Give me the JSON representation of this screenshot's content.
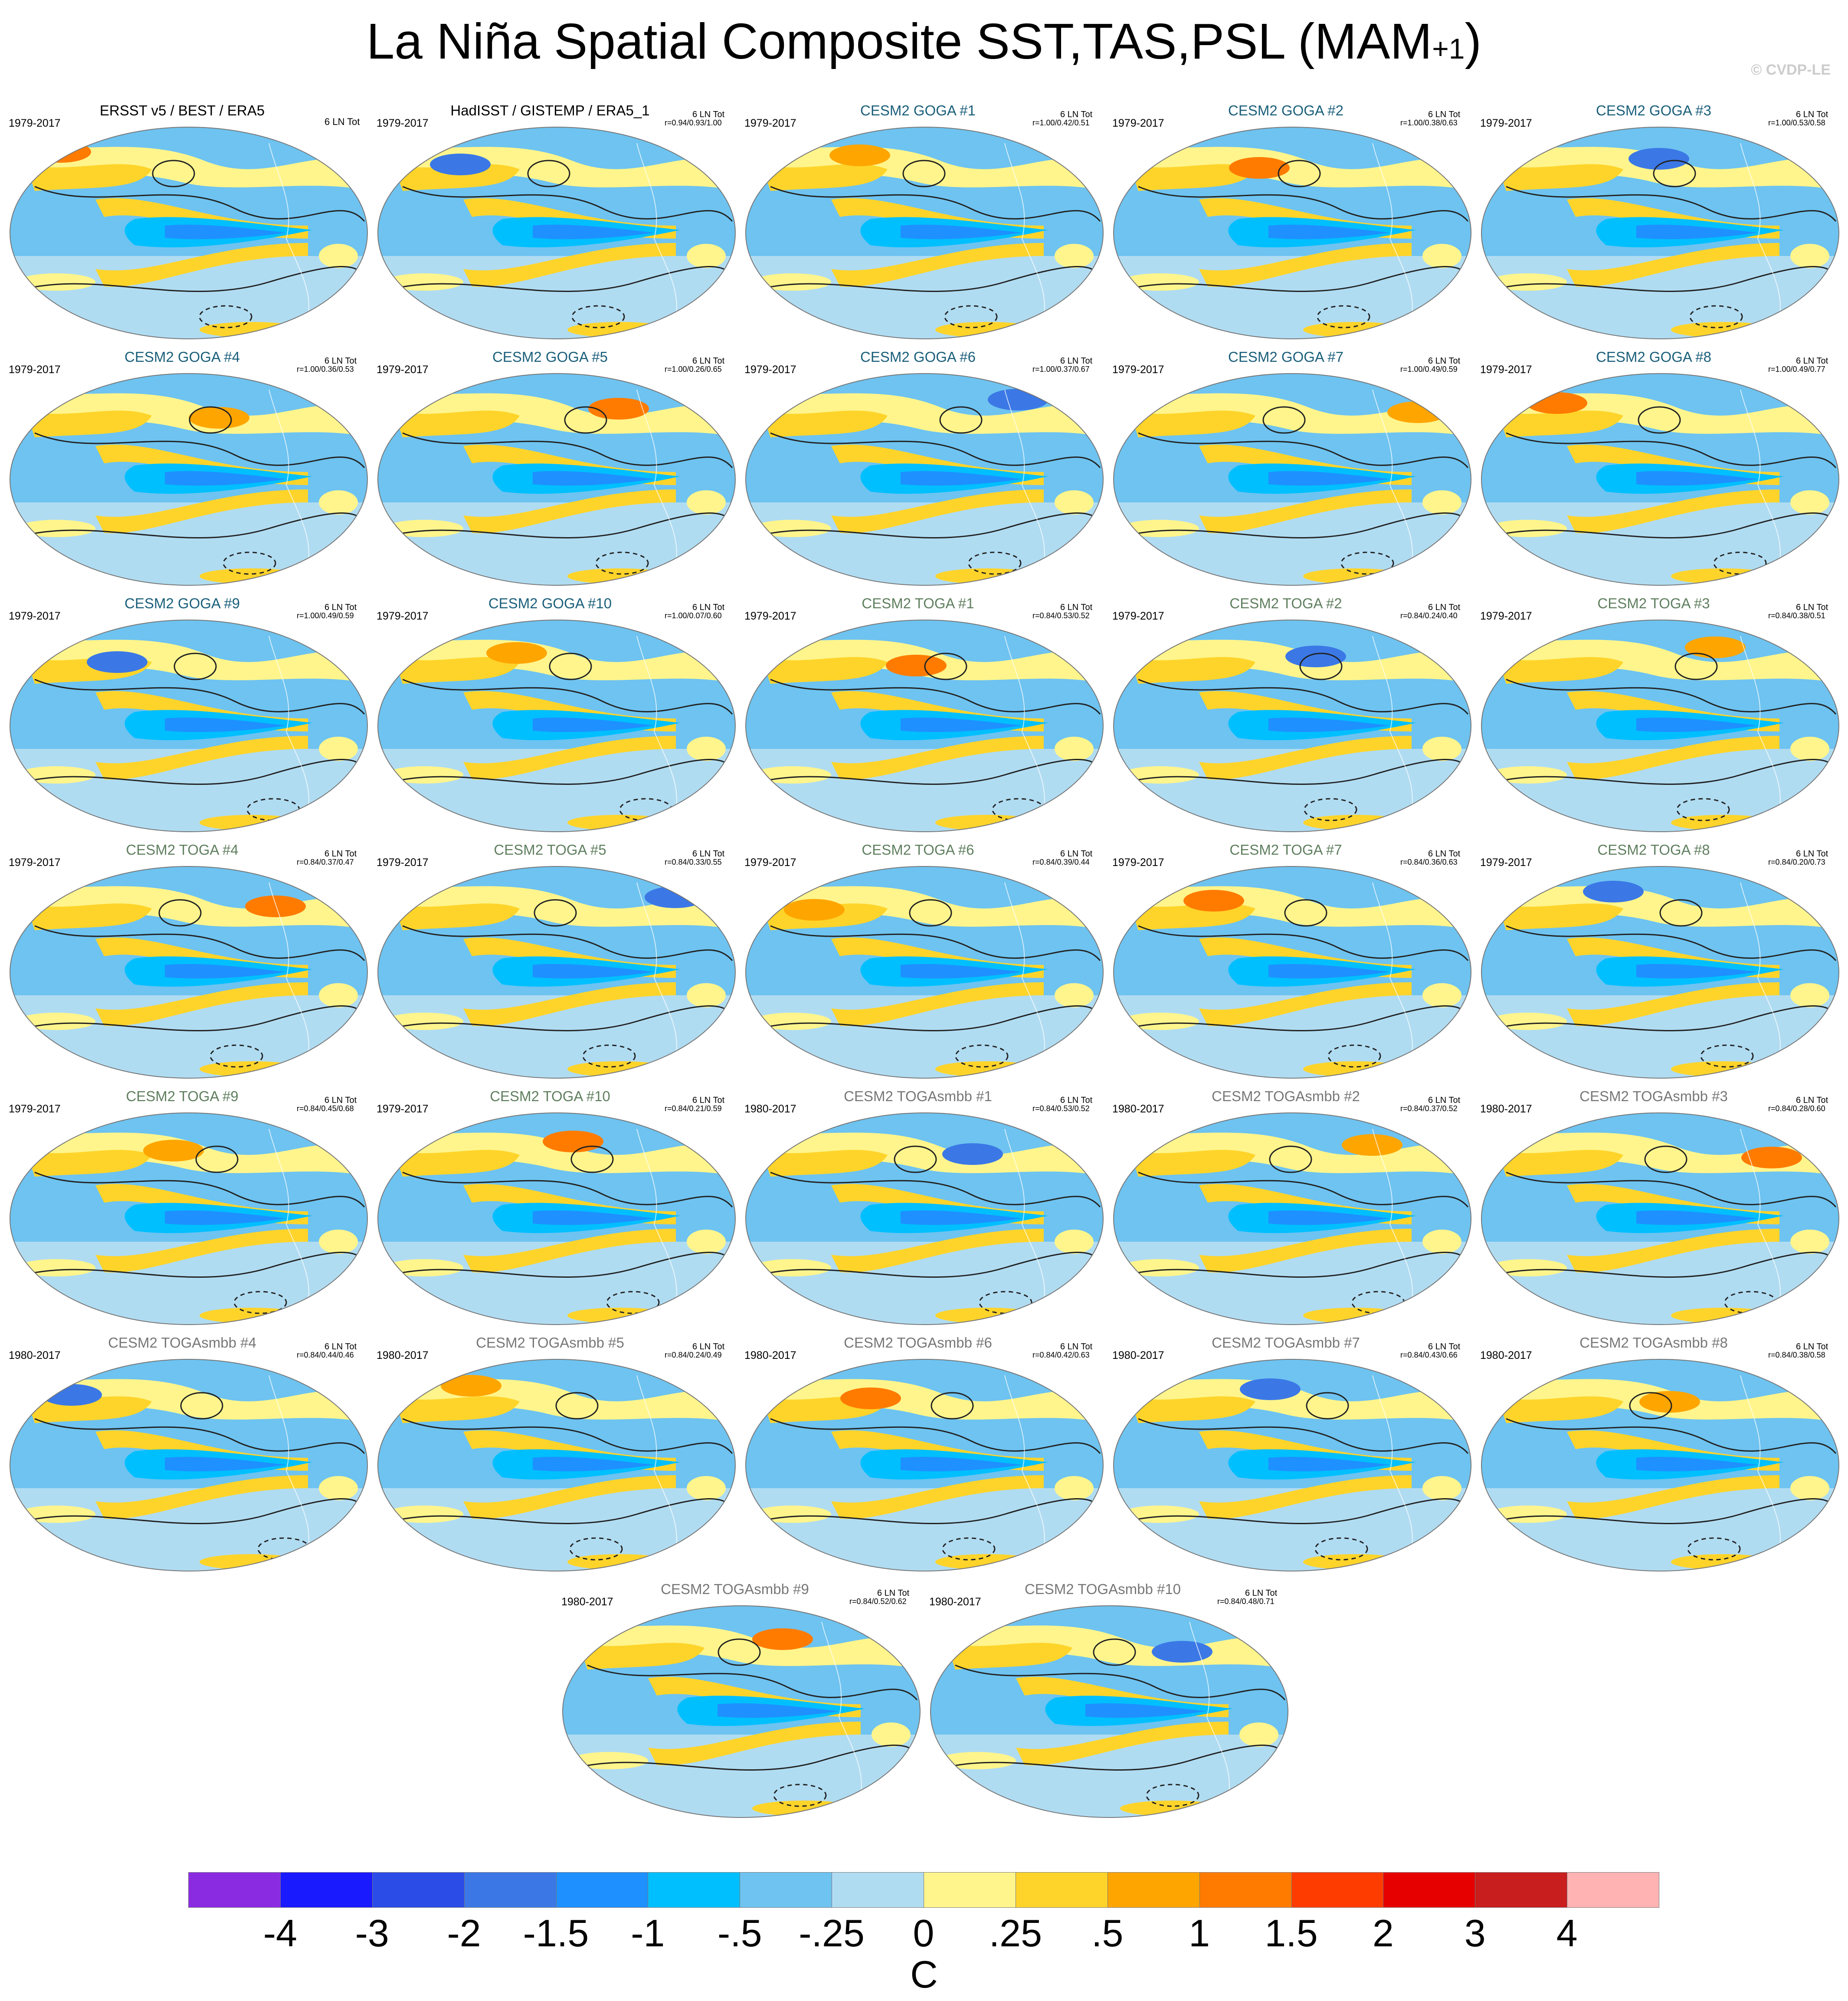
{
  "title": "La Niña Spatial Composite SST,TAS,PSL (MAM",
  "title_superscript": "+1",
  "title_close": ")",
  "watermark": "© CVDP-LE",
  "chart_data": {
    "type": "heatmap",
    "description_kind": "grid of global map panels (Robinson-style ellipse), filled SST/TAS composite anomaly with PSL contours",
    "panels": [
      {
        "title": "ERSST v5 / BEST / ERA5",
        "period": "1979-2017",
        "stat": "6 LN Tot",
        "r": "",
        "title_color": "#000000"
      },
      {
        "title": "HadISST / GISTEMP / ERA5_1",
        "period": "1979-2017",
        "stat": "6 LN Tot",
        "r": "r=0.94/0.93/1.00",
        "title_color": "#000000"
      },
      {
        "title": "CESM2 GOGA #1",
        "period": "1979-2017",
        "stat": "6 LN Tot",
        "r": "r=1.00/0.42/0.51",
        "title_color": "#1a5f7a"
      },
      {
        "title": "CESM2 GOGA #2",
        "period": "1979-2017",
        "stat": "6 LN Tot",
        "r": "r=1.00/0.38/0.63",
        "title_color": "#1a5f7a"
      },
      {
        "title": "CESM2 GOGA #3",
        "period": "1979-2017",
        "stat": "6 LN Tot",
        "r": "r=1.00/0.53/0.58",
        "title_color": "#1a5f7a"
      },
      {
        "title": "CESM2 GOGA #4",
        "period": "1979-2017",
        "stat": "6 LN Tot",
        "r": "r=1.00/0.36/0.53",
        "title_color": "#1a5f7a"
      },
      {
        "title": "CESM2 GOGA #5",
        "period": "1979-2017",
        "stat": "6 LN Tot",
        "r": "r=1.00/0.26/0.65",
        "title_color": "#1a5f7a"
      },
      {
        "title": "CESM2 GOGA #6",
        "period": "1979-2017",
        "stat": "6 LN Tot",
        "r": "r=1.00/0.37/0.67",
        "title_color": "#1a5f7a"
      },
      {
        "title": "CESM2 GOGA #7",
        "period": "1979-2017",
        "stat": "6 LN Tot",
        "r": "r=1.00/0.49/0.59",
        "title_color": "#1a5f7a"
      },
      {
        "title": "CESM2 GOGA #8",
        "period": "1979-2017",
        "stat": "6 LN Tot",
        "r": "r=1.00/0.49/0.77",
        "title_color": "#1a5f7a"
      },
      {
        "title": "CESM2 GOGA #9",
        "period": "1979-2017",
        "stat": "6 LN Tot",
        "r": "r=1.00/0.49/0.59",
        "title_color": "#1a5f7a"
      },
      {
        "title": "CESM2 GOGA #10",
        "period": "1979-2017",
        "stat": "6 LN Tot",
        "r": "r=1.00/0.07/0.60",
        "title_color": "#1a5f7a"
      },
      {
        "title": "CESM2 TOGA #1",
        "period": "1979-2017",
        "stat": "6 LN Tot",
        "r": "r=0.84/0.53/0.52",
        "title_color": "#5f7f5f"
      },
      {
        "title": "CESM2 TOGA #2",
        "period": "1979-2017",
        "stat": "6 LN Tot",
        "r": "r=0.84/0.24/0.40",
        "title_color": "#5f7f5f"
      },
      {
        "title": "CESM2 TOGA #3",
        "period": "1979-2017",
        "stat": "6 LN Tot",
        "r": "r=0.84/0.38/0.51",
        "title_color": "#5f7f5f"
      },
      {
        "title": "CESM2 TOGA #4",
        "period": "1979-2017",
        "stat": "6 LN Tot",
        "r": "r=0.84/0.37/0.47",
        "title_color": "#5f7f5f"
      },
      {
        "title": "CESM2 TOGA #5",
        "period": "1979-2017",
        "stat": "6 LN Tot",
        "r": "r=0.84/0.33/0.55",
        "title_color": "#5f7f5f"
      },
      {
        "title": "CESM2 TOGA #6",
        "period": "1979-2017",
        "stat": "6 LN Tot",
        "r": "r=0.84/0.39/0.44",
        "title_color": "#5f7f5f"
      },
      {
        "title": "CESM2 TOGA #7",
        "period": "1979-2017",
        "stat": "6 LN Tot",
        "r": "r=0.84/0.36/0.63",
        "title_color": "#5f7f5f"
      },
      {
        "title": "CESM2 TOGA #8",
        "period": "1979-2017",
        "stat": "6 LN Tot",
        "r": "r=0.84/0.20/0.73",
        "title_color": "#5f7f5f"
      },
      {
        "title": "CESM2 TOGA #9",
        "period": "1979-2017",
        "stat": "6 LN Tot",
        "r": "r=0.84/0.45/0.68",
        "title_color": "#5f7f5f"
      },
      {
        "title": "CESM2 TOGA #10",
        "period": "1979-2017",
        "stat": "6 LN Tot",
        "r": "r=0.84/0.21/0.59",
        "title_color": "#5f7f5f"
      },
      {
        "title": "CESM2 TOGAsmbb #1",
        "period": "1980-2017",
        "stat": "6 LN Tot",
        "r": "r=0.84/0.53/0.52",
        "title_color": "#777777"
      },
      {
        "title": "CESM2 TOGAsmbb #2",
        "period": "1980-2017",
        "stat": "6 LN Tot",
        "r": "r=0.84/0.37/0.52",
        "title_color": "#777777"
      },
      {
        "title": "CESM2 TOGAsmbb #3",
        "period": "1980-2017",
        "stat": "6 LN Tot",
        "r": "r=0.84/0.28/0.60",
        "title_color": "#777777"
      },
      {
        "title": "CESM2 TOGAsmbb #4",
        "period": "1980-2017",
        "stat": "6 LN Tot",
        "r": "r=0.84/0.44/0.46",
        "title_color": "#777777"
      },
      {
        "title": "CESM2 TOGAsmbb #5",
        "period": "1980-2017",
        "stat": "6 LN Tot",
        "r": "r=0.84/0.24/0.49",
        "title_color": "#777777"
      },
      {
        "title": "CESM2 TOGAsmbb #6",
        "period": "1980-2017",
        "stat": "6 LN Tot",
        "r": "r=0.84/0.42/0.63",
        "title_color": "#777777"
      },
      {
        "title": "CESM2 TOGAsmbb #7",
        "period": "1980-2017",
        "stat": "6 LN Tot",
        "r": "r=0.84/0.43/0.66",
        "title_color": "#777777"
      },
      {
        "title": "CESM2 TOGAsmbb #8",
        "period": "1980-2017",
        "stat": "6 LN Tot",
        "r": "r=0.84/0.38/0.58",
        "title_color": "#777777"
      },
      {
        "title": "CESM2 TOGAsmbb #9",
        "period": "1980-2017",
        "stat": "6 LN Tot",
        "r": "r=0.84/0.52/0.62",
        "title_color": "#777777"
      },
      {
        "title": "CESM2 TOGAsmbb #10",
        "period": "1980-2017",
        "stat": "6 LN Tot",
        "r": "r=0.84/0.48/0.71",
        "title_color": "#777777"
      }
    ],
    "colorbar": {
      "labels": [
        "-4",
        "-3",
        "-2",
        "-1.5",
        "-1",
        "-.5",
        "-.25",
        "0",
        ".25",
        ".5",
        "1",
        "1.5",
        "2",
        "3",
        "4"
      ],
      "colors": [
        "#8a2be2",
        "#1a1aff",
        "#2c4ce8",
        "#3b78e6",
        "#1e90ff",
        "#00bfff",
        "#6ec3f0",
        "#b0dcf2",
        "#fff58c",
        "#ffd42a",
        "#ffa500",
        "#ff7b00",
        "#ff3c00",
        "#e60000",
        "#c81e1e",
        "#ffb3b3"
      ],
      "units": "C"
    }
  }
}
